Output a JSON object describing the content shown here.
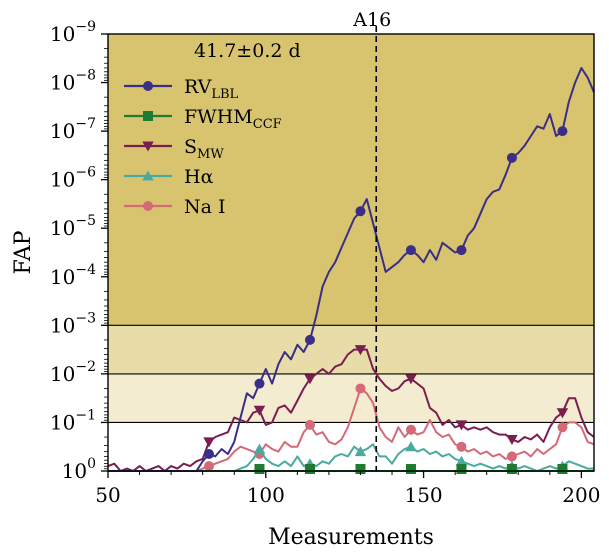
{
  "chart_data": {
    "type": "line",
    "title": "",
    "xlabel": "Measurements",
    "ylabel": "FAP",
    "xlim": [
      50,
      204
    ],
    "ylim_log10": [
      -9,
      0
    ],
    "x_ticks": [
      50,
      100,
      150,
      200
    ],
    "x_tick_labels": [
      "50",
      "100",
      "150",
      "200"
    ],
    "y_ticks_log10": [
      -9,
      -8,
      -7,
      -6,
      -5,
      -4,
      -3,
      -2,
      -1,
      0
    ],
    "y_tick_labels": [
      {
        "base": "10",
        "exp": "−9"
      },
      {
        "base": "10",
        "exp": "−8"
      },
      {
        "base": "10",
        "exp": "−7"
      },
      {
        "base": "10",
        "exp": "−6"
      },
      {
        "base": "10",
        "exp": "−5"
      },
      {
        "base": "10",
        "exp": "−4"
      },
      {
        "base": "10",
        "exp": "−3"
      },
      {
        "base": "10",
        "exp": "−2"
      },
      {
        "base": "10",
        "exp": "−1"
      },
      {
        "base": "10",
        "exp": "0"
      }
    ],
    "fap_levels": [
      {
        "fap": 0.1,
        "band_top": 0.01,
        "color": "#f3ecd0"
      },
      {
        "fap": 0.01,
        "band_top": 0.001,
        "color": "#e8dca8"
      },
      {
        "fap": 0.001,
        "band_top": 1e-09,
        "color": "#d8c46e"
      }
    ],
    "vline": {
      "x": 135,
      "label": "A16"
    },
    "legend_title": "41.7±0.2 d",
    "legend_position": "upper-left",
    "series": [
      {
        "name": "RV",
        "sub": "LBL",
        "color": "#3b2e88",
        "marker": "circle",
        "x": [
          50,
          52,
          54,
          56,
          58,
          60,
          62,
          64,
          66,
          68,
          70,
          72,
          74,
          76,
          78,
          80,
          82,
          84,
          86,
          88,
          90,
          92,
          94,
          96,
          98,
          100,
          102,
          104,
          106,
          108,
          110,
          112,
          114,
          116,
          118,
          120,
          122,
          124,
          126,
          128,
          130,
          132,
          134,
          136,
          138,
          140,
          142,
          144,
          146,
          148,
          150,
          152,
          154,
          156,
          158,
          160,
          162,
          164,
          166,
          168,
          170,
          172,
          174,
          176,
          178,
          180,
          182,
          184,
          186,
          188,
          190,
          192,
          194,
          196,
          198,
          200,
          202,
          204
        ],
        "log10": [
          0,
          0,
          0,
          0,
          0,
          0,
          0,
          0,
          0,
          0,
          0,
          0,
          0,
          0,
          0,
          -0.2,
          -0.35,
          -0.3,
          -0.45,
          -0.35,
          -0.6,
          -1.1,
          -1.6,
          -1.5,
          -1.8,
          -2.1,
          -1.8,
          -2.2,
          -2.45,
          -2.3,
          -2.6,
          -2.45,
          -2.7,
          -3.2,
          -3.8,
          -4.1,
          -4.3,
          -4.6,
          -4.9,
          -5.2,
          -5.35,
          -5.6,
          -5.1,
          -4.6,
          -4.1,
          -4.2,
          -4.3,
          -4.45,
          -4.55,
          -4.45,
          -4.3,
          -4.55,
          -4.35,
          -4.7,
          -4.6,
          -4.5,
          -4.55,
          -4.85,
          -5.0,
          -5.3,
          -5.6,
          -5.75,
          -5.8,
          -6.1,
          -6.45,
          -6.55,
          -6.7,
          -6.9,
          -7.1,
          -7.05,
          -7.35,
          -6.9,
          -7.0,
          -7.6,
          -8.0,
          -8.3,
          -8.1,
          -7.8
        ],
        "mark_x": [
          82,
          98,
          114,
          130,
          146,
          162,
          178,
          194
        ]
      },
      {
        "name": "FWHM",
        "sub": "CCF",
        "color": "#1f7a32",
        "marker": "square",
        "x": [
          50,
          60,
          70,
          80,
          90,
          100,
          110,
          120,
          130,
          140,
          150,
          160,
          170,
          180,
          190,
          200,
          204
        ],
        "log10": [
          0,
          0,
          0,
          0,
          0,
          0,
          0,
          0,
          0,
          0,
          0,
          0,
          0,
          0,
          0,
          0,
          0
        ],
        "mark_x": [
          98,
          114,
          130,
          146,
          162,
          178,
          194
        ]
      },
      {
        "name": "S",
        "sub": "MW",
        "color": "#7a1e50",
        "marker": "triangle-down",
        "x": [
          50,
          52,
          54,
          56,
          58,
          60,
          62,
          64,
          66,
          68,
          70,
          72,
          74,
          76,
          78,
          80,
          82,
          84,
          86,
          88,
          90,
          92,
          94,
          96,
          98,
          100,
          102,
          104,
          106,
          108,
          110,
          112,
          114,
          116,
          118,
          120,
          122,
          124,
          126,
          128,
          130,
          132,
          134,
          136,
          138,
          140,
          142,
          144,
          146,
          148,
          150,
          152,
          154,
          156,
          158,
          160,
          162,
          164,
          166,
          168,
          170,
          172,
          174,
          176,
          178,
          180,
          182,
          184,
          186,
          188,
          190,
          192,
          194,
          196,
          198,
          200,
          202,
          204
        ],
        "log10": [
          -0.1,
          -0.15,
          0,
          -0.05,
          0,
          -0.1,
          0,
          -0.05,
          -0.1,
          0,
          -0.1,
          -0.05,
          -0.15,
          -0.1,
          -0.2,
          -0.25,
          -0.6,
          -0.7,
          -0.75,
          -0.8,
          -1.1,
          -1.05,
          -1.0,
          -1.2,
          -1.25,
          -0.95,
          -1.0,
          -1.3,
          -1.35,
          -1.2,
          -1.45,
          -1.7,
          -1.9,
          -2.0,
          -2.1,
          -2.0,
          -2.15,
          -2.2,
          -2.4,
          -2.5,
          -2.5,
          -2.5,
          -2.1,
          -1.9,
          -1.75,
          -1.65,
          -1.7,
          -1.85,
          -1.9,
          -1.8,
          -1.7,
          -1.3,
          -1.2,
          -0.95,
          -1.05,
          -0.9,
          -0.95,
          -0.85,
          -0.9,
          -0.85,
          -0.9,
          -0.8,
          -0.75,
          -0.75,
          -0.65,
          -0.6,
          -0.7,
          -0.65,
          -0.75,
          -0.6,
          -0.9,
          -1.1,
          -1.2,
          -1.5,
          -1.5,
          -1.1,
          -0.8,
          -0.7
        ],
        "mark_x": [
          82,
          98,
          114,
          130,
          146,
          162,
          178,
          194
        ]
      },
      {
        "name": "Hα",
        "sub": "",
        "color": "#4aaaa0",
        "marker": "triangle-up",
        "x": [
          50,
          52,
          54,
          56,
          58,
          60,
          62,
          64,
          66,
          68,
          70,
          72,
          74,
          76,
          78,
          80,
          82,
          84,
          86,
          88,
          90,
          92,
          94,
          96,
          98,
          100,
          102,
          104,
          106,
          108,
          110,
          112,
          114,
          116,
          118,
          120,
          122,
          124,
          126,
          128,
          130,
          132,
          134,
          136,
          138,
          140,
          142,
          144,
          146,
          148,
          150,
          152,
          154,
          156,
          158,
          160,
          162,
          164,
          166,
          168,
          170,
          172,
          174,
          176,
          178,
          180,
          182,
          184,
          186,
          188,
          190,
          192,
          194,
          196,
          198,
          200,
          202,
          204
        ],
        "log10": [
          0,
          0,
          0,
          0,
          0,
          0,
          0,
          0,
          0,
          0,
          0,
          0,
          0,
          0,
          0,
          0,
          0,
          0,
          0,
          0,
          0,
          -0.05,
          -0.1,
          -0.25,
          -0.45,
          -0.25,
          -0.15,
          -0.1,
          -0.2,
          -0.1,
          -0.3,
          -0.1,
          -0.15,
          -0.1,
          -0.2,
          -0.15,
          -0.3,
          -0.35,
          -0.3,
          -0.5,
          -0.4,
          -0.45,
          -0.55,
          -0.3,
          -0.3,
          -0.15,
          -0.35,
          -0.45,
          -0.5,
          -0.4,
          -0.45,
          -0.35,
          -0.4,
          -0.3,
          -0.35,
          -0.25,
          -0.2,
          -0.15,
          -0.1,
          -0.15,
          -0.1,
          -0.05,
          -0.1,
          -0.05,
          -0.1,
          -0.05,
          -0.1,
          -0.05,
          0,
          -0.05,
          -0.1,
          -0.05,
          -0.1,
          -0.2,
          -0.15,
          -0.1,
          -0.05,
          -0.05
        ],
        "mark_x": [
          98,
          114,
          130,
          146,
          162,
          178,
          194
        ]
      },
      {
        "name": "Na I",
        "sub": "",
        "color": "#d46a78",
        "marker": "circle",
        "x": [
          50,
          52,
          54,
          56,
          58,
          60,
          62,
          64,
          66,
          68,
          70,
          72,
          74,
          76,
          78,
          80,
          82,
          84,
          86,
          88,
          90,
          92,
          94,
          96,
          98,
          100,
          102,
          104,
          106,
          108,
          110,
          112,
          114,
          116,
          118,
          120,
          122,
          124,
          126,
          128,
          130,
          132,
          134,
          136,
          138,
          140,
          142,
          144,
          146,
          148,
          150,
          152,
          154,
          156,
          158,
          160,
          162,
          164,
          166,
          168,
          170,
          172,
          174,
          176,
          178,
          180,
          182,
          184,
          186,
          188,
          190,
          192,
          194,
          196,
          198,
          200,
          202,
          204
        ],
        "log10": [
          0,
          0,
          0,
          0,
          0,
          0,
          0,
          0,
          0,
          0,
          0,
          0,
          0,
          0,
          0,
          -0.05,
          -0.1,
          -0.15,
          -0.2,
          -0.25,
          -0.4,
          -0.5,
          -0.45,
          -0.4,
          -0.35,
          -0.55,
          -0.45,
          -0.4,
          -0.6,
          -0.5,
          -0.5,
          -0.8,
          -0.95,
          -0.75,
          -0.8,
          -0.6,
          -0.55,
          -0.65,
          -0.9,
          -1.3,
          -1.7,
          -1.6,
          -1.4,
          -0.9,
          -0.7,
          -0.6,
          -0.9,
          -0.7,
          -0.85,
          -0.75,
          -0.8,
          -1.05,
          -0.8,
          -0.7,
          -0.75,
          -0.55,
          -0.5,
          -0.4,
          -0.45,
          -0.35,
          -0.4,
          -0.3,
          -0.35,
          -0.25,
          -0.3,
          -0.35,
          -0.4,
          -0.3,
          -0.45,
          -0.35,
          -0.45,
          -0.55,
          -0.9,
          -1.0,
          -1.0,
          -0.9,
          -0.6,
          -0.55
        ],
        "mark_x": [
          82,
          98,
          114,
          130,
          146,
          162,
          178,
          194
        ]
      }
    ]
  }
}
